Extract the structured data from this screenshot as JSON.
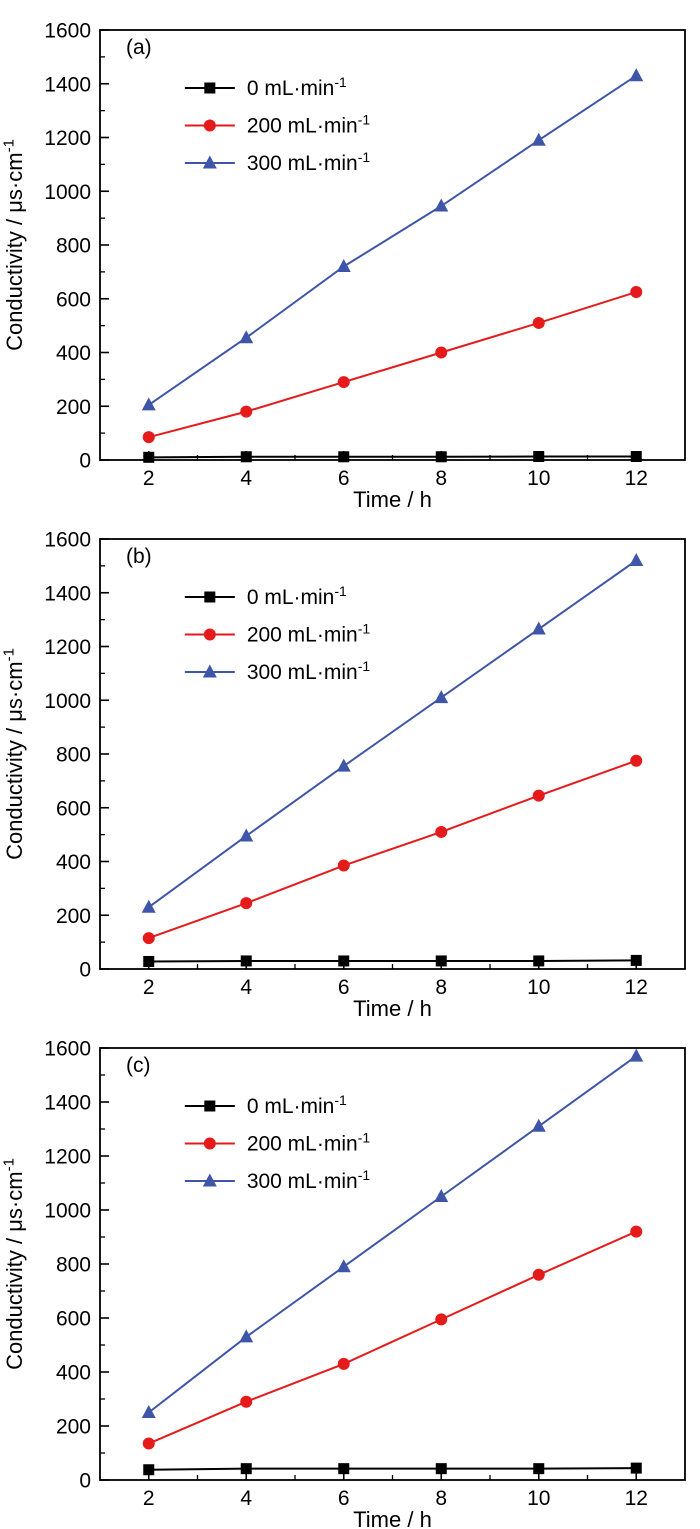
{
  "chart_data": [
    {
      "type": "line",
      "panel_label": "(a)",
      "xlabel": "Time / h",
      "ylabel": "Conductivity / μs·cm",
      "ylabel_sup": "-1",
      "xlim": [
        1,
        13
      ],
      "ylim": [
        0,
        1600
      ],
      "x_ticks": [
        2,
        4,
        6,
        8,
        10,
        12
      ],
      "y_ticks": [
        0,
        200,
        400,
        600,
        800,
        1000,
        1200,
        1400,
        1600
      ],
      "x_minor_ticks": [
        3,
        5,
        7,
        9,
        11
      ],
      "y_minor_ticks": [
        100,
        300,
        500,
        700,
        900,
        1100,
        1300,
        1500
      ],
      "grid": false,
      "legend_position": "upper-left",
      "x": [
        2,
        4,
        6,
        8,
        10,
        12
      ],
      "series": [
        {
          "name": "0 mL·min",
          "name_sup": "-1",
          "marker": "square",
          "color": "#000000",
          "values": [
            10,
            12,
            12,
            12,
            13,
            13
          ]
        },
        {
          "name": "200 mL·min",
          "name_sup": "-1",
          "marker": "circle",
          "color": "#e51a1a",
          "values": [
            85,
            180,
            290,
            400,
            510,
            625
          ]
        },
        {
          "name": "300 mL·min",
          "name_sup": "-1",
          "marker": "triangle",
          "color": "#3f56a8",
          "values": [
            205,
            455,
            720,
            945,
            1190,
            1430
          ]
        }
      ]
    },
    {
      "type": "line",
      "panel_label": "(b)",
      "xlabel": "Time / h",
      "ylabel": "Conductivity / μs·cm",
      "ylabel_sup": "-1",
      "xlim": [
        1,
        13
      ],
      "ylim": [
        0,
        1600
      ],
      "x_ticks": [
        2,
        4,
        6,
        8,
        10,
        12
      ],
      "y_ticks": [
        0,
        200,
        400,
        600,
        800,
        1000,
        1200,
        1400,
        1600
      ],
      "x_minor_ticks": [
        3,
        5,
        7,
        9,
        11
      ],
      "y_minor_ticks": [
        100,
        300,
        500,
        700,
        900,
        1100,
        1300,
        1500
      ],
      "grid": false,
      "legend_position": "upper-left",
      "x": [
        2,
        4,
        6,
        8,
        10,
        12
      ],
      "series": [
        {
          "name": "0 mL·min",
          "name_sup": "-1",
          "marker": "square",
          "color": "#000000",
          "values": [
            28,
            30,
            30,
            30,
            30,
            32
          ]
        },
        {
          "name": "200 mL·min",
          "name_sup": "-1",
          "marker": "circle",
          "color": "#e51a1a",
          "values": [
            115,
            245,
            385,
            510,
            645,
            775
          ]
        },
        {
          "name": "300 mL·min",
          "name_sup": "-1",
          "marker": "triangle",
          "color": "#3f56a8",
          "values": [
            230,
            495,
            755,
            1010,
            1265,
            1520
          ]
        }
      ]
    },
    {
      "type": "line",
      "panel_label": "(c)",
      "xlabel": "Time / h",
      "ylabel": "Conductivity / μs·cm",
      "ylabel_sup": "-1",
      "xlim": [
        1,
        13
      ],
      "ylim": [
        0,
        1600
      ],
      "x_ticks": [
        2,
        4,
        6,
        8,
        10,
        12
      ],
      "y_ticks": [
        0,
        200,
        400,
        600,
        800,
        1000,
        1200,
        1400,
        1600
      ],
      "x_minor_ticks": [
        3,
        5,
        7,
        9,
        11
      ],
      "y_minor_ticks": [
        100,
        300,
        500,
        700,
        900,
        1100,
        1300,
        1500
      ],
      "grid": false,
      "legend_position": "upper-left",
      "x": [
        2,
        4,
        6,
        8,
        10,
        12
      ],
      "series": [
        {
          "name": "0 mL·min",
          "name_sup": "-1",
          "marker": "square",
          "color": "#000000",
          "values": [
            38,
            42,
            42,
            42,
            42,
            44
          ]
        },
        {
          "name": "200 mL·min",
          "name_sup": "-1",
          "marker": "circle",
          "color": "#e51a1a",
          "values": [
            135,
            290,
            430,
            595,
            760,
            920
          ]
        },
        {
          "name": "300 mL·min",
          "name_sup": "-1",
          "marker": "triangle",
          "color": "#3f56a8",
          "values": [
            250,
            530,
            790,
            1050,
            1310,
            1570
          ]
        }
      ]
    }
  ]
}
